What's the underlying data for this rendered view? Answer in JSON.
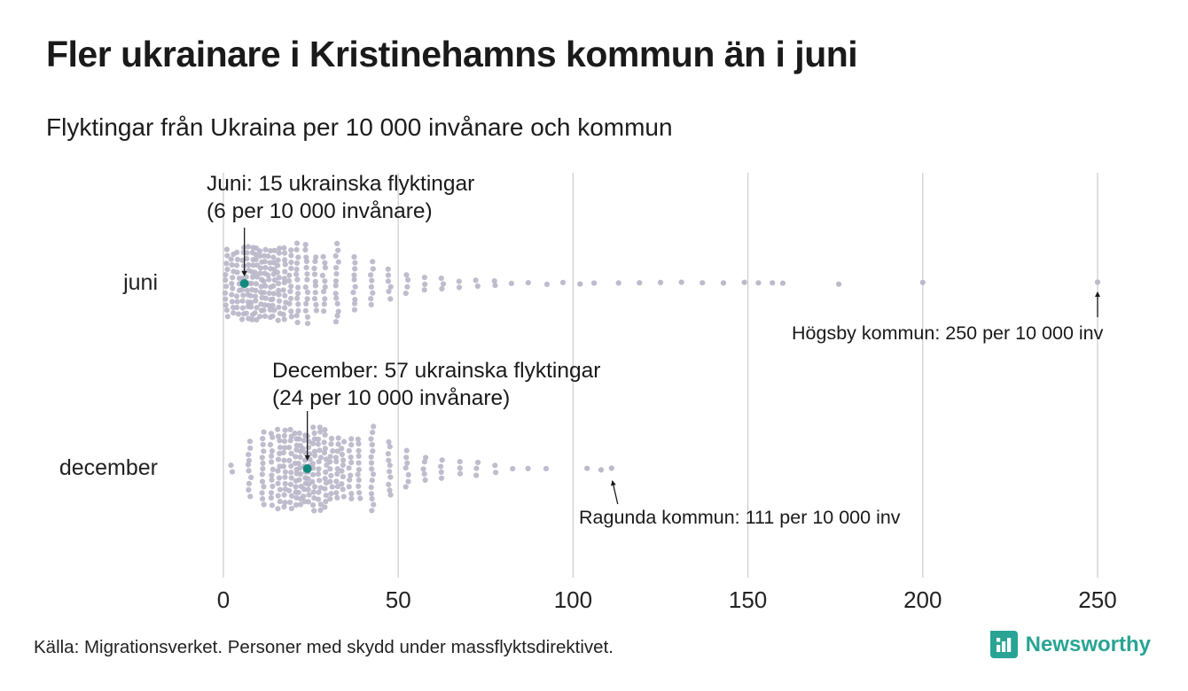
{
  "header": {
    "title": "Fler ukrainare i Kristinehamns kommun än i juni",
    "subtitle": "Flyktingar från Ukraina per 10 000 invånare och kommun"
  },
  "chart_data": {
    "type": "beeswarm",
    "title": "Fler ukrainare i Kristinehamns kommun än i juni",
    "subtitle": "Flyktingar från Ukraina per 10 000 invånare och kommun",
    "xlabel": "",
    "x_ticks": [
      0,
      50,
      100,
      150,
      200,
      250
    ],
    "x_max": 250,
    "grid": true,
    "rows": [
      {
        "id": "juni",
        "label": "juni",
        "highlight": {
          "value": 6,
          "label_line1": "Juni: 15 ukrainska flyktingar",
          "label_line2": "(6 per 10 000 invånare)"
        },
        "callout": {
          "value": 250,
          "label": "Högsby kommun: 250 per 10 000 inv"
        },
        "histogram": {
          "bin_width": 5,
          "start": 0,
          "counts": [
            34,
            52,
            48,
            38,
            28,
            20,
            14,
            10,
            8,
            6,
            4,
            3,
            3,
            2,
            2,
            2,
            1,
            1,
            1,
            1
          ]
        },
        "singles": [
          102,
          106,
          113,
          119,
          125,
          131,
          137,
          143,
          149,
          153,
          157,
          160,
          176,
          200,
          250
        ]
      },
      {
        "id": "december",
        "label": "december",
        "highlight": {
          "value": 24,
          "label_line1": "December: 57 ukrainska flyktingar",
          "label_line2": "(24 per 10 000 invånare)"
        },
        "callout": {
          "value": 111,
          "label": "Ragunda kommun: 111 per 10 000 inv"
        },
        "histogram": {
          "bin_width": 5,
          "start": 0,
          "counts": [
            2,
            10,
            26,
            42,
            50,
            44,
            32,
            22,
            15,
            10,
            7,
            5,
            4,
            3,
            3,
            2,
            1,
            1,
            1,
            0
          ]
        },
        "singles": [
          104,
          108,
          111
        ]
      }
    ]
  },
  "footer": {
    "source": "Källa: Migrationsverket. Personer med skydd under massflyktsdirektivet.",
    "brand": "Newsworthy"
  },
  "colors": {
    "dot": "#b8b6c8",
    "accent": "#11897e",
    "brand": "#29a494",
    "grid": "#cccccc",
    "text": "#1a1a1a",
    "axis_text": "#222222"
  }
}
